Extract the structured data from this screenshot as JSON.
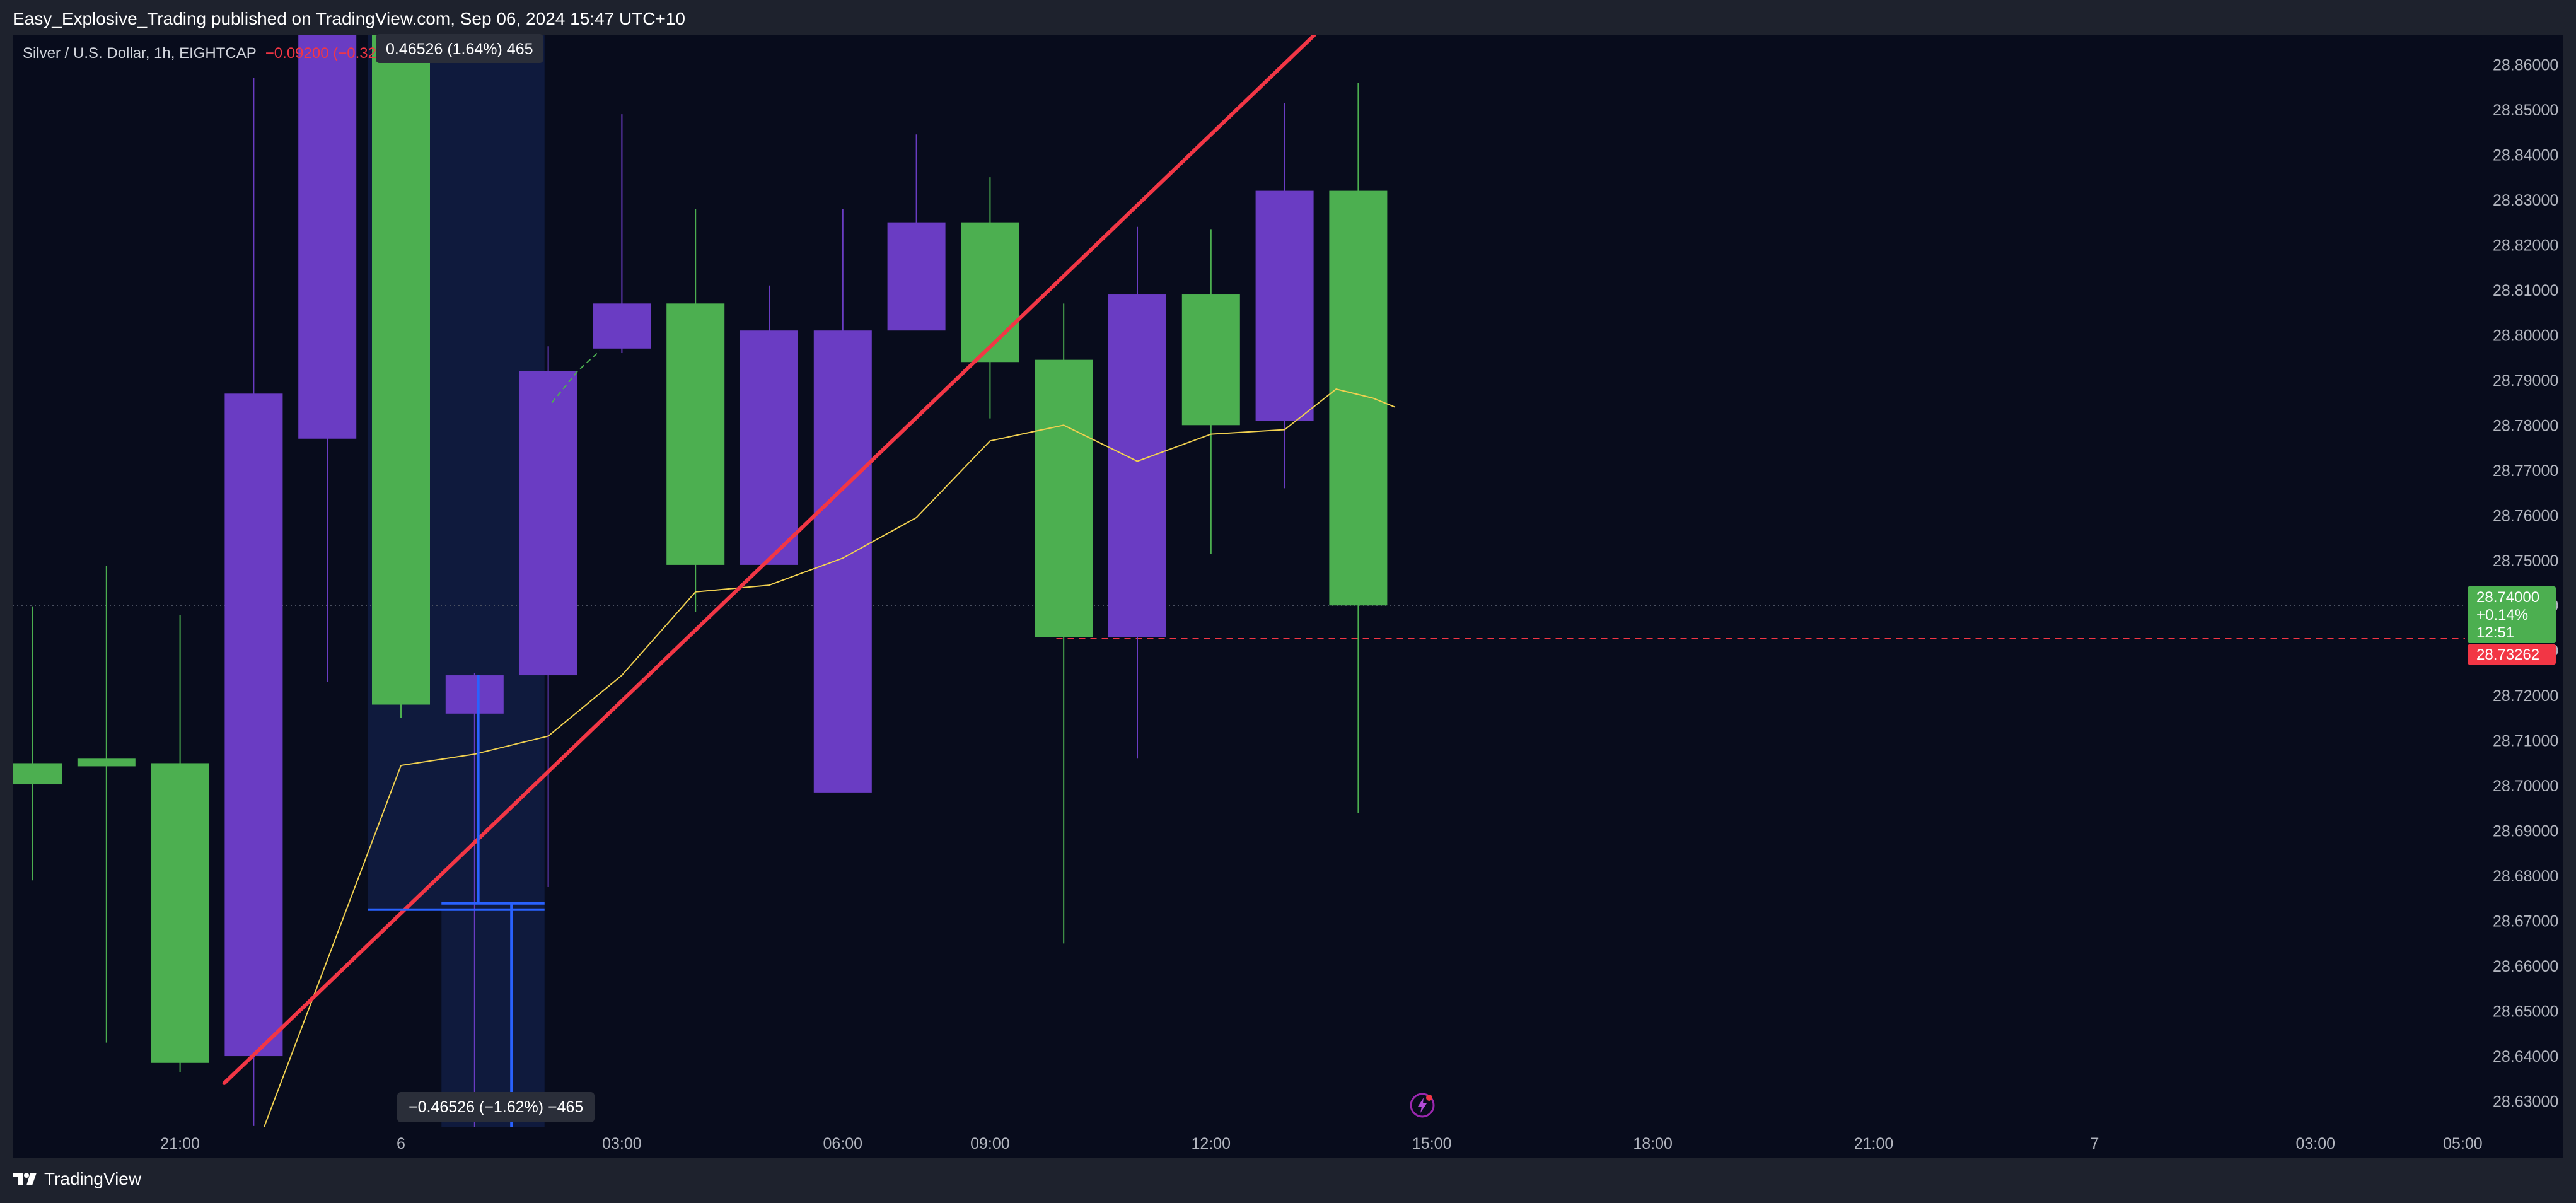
{
  "header": {
    "publisher_text": "Easy_Explosive_Trading published on TradingView.com, Sep 06, 2024 15:47 UTC+10"
  },
  "legend": {
    "symbol_text": "Silver / U.S. Dollar, 1h, EIGHTCAP",
    "change_text": "−0.09200 (−0.32%)"
  },
  "measure": {
    "top_label": "0.46526 (1.64%) 465",
    "bottom_label": "−0.46526 (−1.62%) −465"
  },
  "price_tags": {
    "last_price": "28.74000",
    "last_change": "+0.14%",
    "countdown": "12:51",
    "line_price": "28.73262"
  },
  "footer": {
    "brand": "TradingView"
  },
  "colors": {
    "background": "#080c1c",
    "bull": "#4caf50",
    "bear": "#6a3cc3",
    "trendline": "#f23645",
    "ma_line": "#f0d050",
    "measure": "#2962ff"
  },
  "icons": [
    "tradingview-logo-icon",
    "lightning-bolt-icon"
  ],
  "chart_data": {
    "type": "candlestick",
    "title": "Silver / U.S. Dollar, 1h, EIGHTCAP",
    "ylim": [
      28.6242,
      28.8665
    ],
    "y_ticks": [
      "28.86000",
      "28.85000",
      "28.84000",
      "28.83000",
      "28.82000",
      "28.81000",
      "28.80000",
      "28.79000",
      "28.78000",
      "28.77000",
      "28.76000",
      "28.75000",
      "28.74000",
      "28.73000",
      "28.72000",
      "28.71000",
      "28.70000",
      "28.69000",
      "28.68000",
      "28.67000",
      "28.66000",
      "28.65000",
      "28.64000",
      "28.63000"
    ],
    "x_ticks": [
      {
        "label": "21:00",
        "bar": 2
      },
      {
        "label": "6",
        "bar": 5
      },
      {
        "label": "03:00",
        "bar": 8
      },
      {
        "label": "06:00",
        "bar": 11
      },
      {
        "label": "09:00",
        "bar": 13
      },
      {
        "label": "12:00",
        "bar": 16
      },
      {
        "label": "15:00",
        "bar": 19
      },
      {
        "label": "18:00",
        "bar": 22
      },
      {
        "label": "21:00",
        "bar": 25
      },
      {
        "label": "7",
        "bar": 28
      },
      {
        "label": "03:00",
        "bar": 31
      },
      {
        "label": "05:00",
        "bar": 33
      }
    ],
    "candles": [
      {
        "open": 28.7003,
        "high": 28.7398,
        "low": 28.679,
        "close": 28.705
      },
      {
        "open": 28.7043,
        "high": 28.7488,
        "low": 28.643,
        "close": 28.706
      },
      {
        "open": 28.6385,
        "high": 28.7378,
        "low": 28.6365,
        "close": 28.705
      },
      {
        "open": 28.787,
        "high": 28.857,
        "low": 28.6245,
        "close": 28.64
      },
      {
        "open": 28.875,
        "high": 28.88,
        "low": 28.723,
        "close": 28.777
      },
      {
        "open": 28.718,
        "high": 28.88,
        "low": 28.715,
        "close": 28.88
      },
      {
        "open": 28.7245,
        "high": 28.725,
        "low": 28.624,
        "close": 28.716
      },
      {
        "open": 28.792,
        "high": 28.7975,
        "low": 28.6775,
        "close": 28.7245
      },
      {
        "open": 28.807,
        "high": 28.849,
        "low": 28.796,
        "close": 28.797
      },
      {
        "open": 28.749,
        "high": 28.828,
        "low": 28.7385,
        "close": 28.807
      },
      {
        "open": 28.801,
        "high": 28.811,
        "low": 28.749,
        "close": 28.749
      },
      {
        "open": 28.801,
        "high": 28.828,
        "low": 28.699,
        "close": 28.6985
      },
      {
        "open": 28.825,
        "high": 28.8445,
        "low": 28.802,
        "close": 28.801
      },
      {
        "open": 28.794,
        "high": 28.835,
        "low": 28.7815,
        "close": 28.825
      },
      {
        "open": 28.733,
        "high": 28.807,
        "low": 28.665,
        "close": 28.7945
      },
      {
        "open": 28.809,
        "high": 28.824,
        "low": 28.706,
        "close": 28.733
      },
      {
        "open": 28.78,
        "high": 28.8235,
        "low": 28.7515,
        "close": 28.809
      },
      {
        "open": 28.832,
        "high": 28.8515,
        "low": 28.766,
        "close": 28.781
      },
      {
        "open": 28.74,
        "high": 28.856,
        "low": 28.694,
        "close": 28.832
      }
    ],
    "ma_line": [
      {
        "bar": 3.1,
        "y": 28.6225
      },
      {
        "bar": 5.0,
        "y": 28.7045
      },
      {
        "bar": 6.0,
        "y": 28.707
      },
      {
        "bar": 7.0,
        "y": 28.711
      },
      {
        "bar": 8.0,
        "y": 28.7245
      },
      {
        "bar": 9.0,
        "y": 28.743
      },
      {
        "bar": 10.0,
        "y": 28.7445
      },
      {
        "bar": 11.0,
        "y": 28.7505
      },
      {
        "bar": 12.0,
        "y": 28.7595
      },
      {
        "bar": 13.0,
        "y": 28.7765
      },
      {
        "bar": 14.0,
        "y": 28.78
      },
      {
        "bar": 15.0,
        "y": 28.772
      },
      {
        "bar": 16.0,
        "y": 28.778
      },
      {
        "bar": 17.0,
        "y": 28.779
      },
      {
        "bar": 17.7,
        "y": 28.788
      },
      {
        "bar": 18.2,
        "y": 28.786
      },
      {
        "bar": 18.5,
        "y": 28.784
      }
    ],
    "trendline": {
      "from": {
        "bar": 2.6,
        "y": 28.634
      },
      "to": {
        "bar": 17.4,
        "y": 28.8665
      }
    },
    "horizontal_line": {
      "y": 28.73262,
      "from_bar": 13.9
    },
    "last_price": 28.74,
    "grid": false,
    "measure_tool": {
      "from_bar": 4.55,
      "to_bar": 6.95,
      "top": 28.8665,
      "bottom": 28.6725,
      "inner_from_bar": 5.55,
      "range_change": -0.46526
    }
  }
}
